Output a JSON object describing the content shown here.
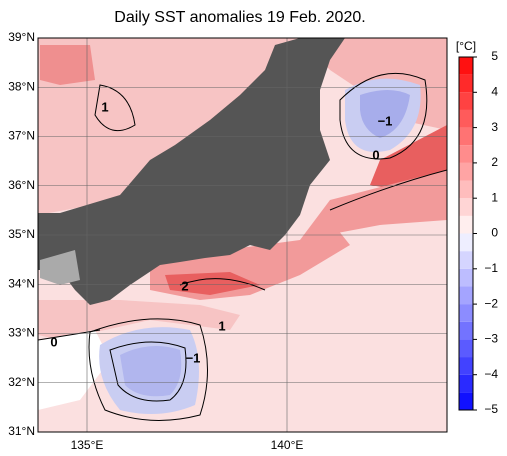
{
  "title": "Daily SST anomalies 19 Feb. 2020.",
  "map": {
    "lat_ticks": [
      {
        "value": 39,
        "label": "39°N"
      },
      {
        "value": 38,
        "label": "38°N"
      },
      {
        "value": 37,
        "label": "37°N"
      },
      {
        "value": 36,
        "label": "36°N"
      },
      {
        "value": 35,
        "label": "35°N"
      },
      {
        "value": 34,
        "label": "34°N"
      },
      {
        "value": 33,
        "label": "33°N"
      },
      {
        "value": 32,
        "label": "32°N"
      },
      {
        "value": 31,
        "label": "31°N"
      }
    ],
    "lon_ticks": [
      {
        "value": 135,
        "label": "135°E"
      },
      {
        "value": 140,
        "label": "140°E"
      }
    ],
    "contour_labels": [
      "1",
      "−1",
      "0",
      "2",
      "1",
      "0",
      "−1"
    ]
  },
  "colorbar": {
    "unit": "[°C]",
    "lim": [
      -5,
      5
    ],
    "ticks": [
      5,
      4,
      3,
      2,
      1,
      0,
      {
        "value": -1,
        "label": "−1"
      },
      {
        "value": -2,
        "label": "−2"
      },
      {
        "value": -3,
        "label": "−3"
      },
      {
        "value": -4,
        "label": "−4"
      },
      {
        "value": -5,
        "label": "−5"
      }
    ]
  }
}
